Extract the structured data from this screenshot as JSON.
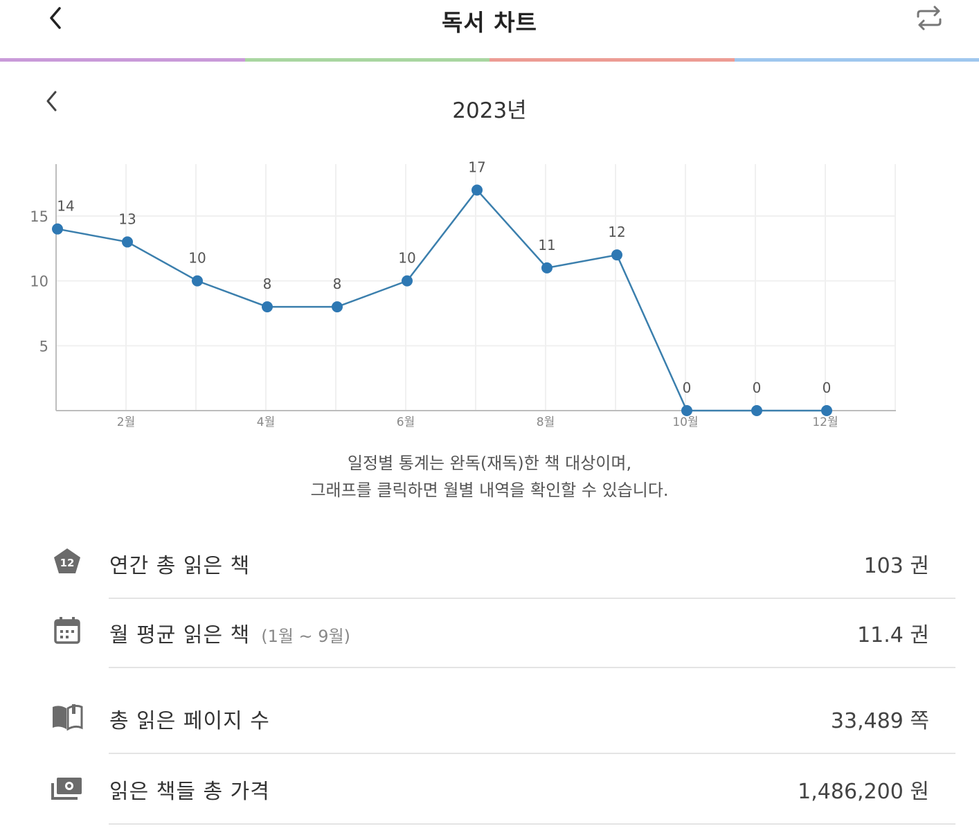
{
  "header": {
    "title": "독서 차트",
    "back_icon": "chevron-left-icon",
    "swap_icon": "swap-arrows-icon"
  },
  "tab_colors": [
    "#c99ad9",
    "#a9d6a1",
    "#ec9c94",
    "#9fc7ee"
  ],
  "year_nav": {
    "label": "2023년"
  },
  "chart_data": {
    "type": "line",
    "categories": [
      "1월",
      "2월",
      "3월",
      "4월",
      "5월",
      "6월",
      "7월",
      "8월",
      "9월",
      "10월",
      "11월",
      "12월"
    ],
    "x_tick_labels": [
      "",
      "2월",
      "",
      "4월",
      "",
      "6월",
      "",
      "8월",
      "",
      "10월",
      "",
      "12월"
    ],
    "values": [
      14,
      13,
      10,
      8,
      8,
      10,
      17,
      11,
      12,
      0,
      0,
      0
    ],
    "data_labels": [
      "14",
      "13",
      "10",
      "8",
      "8",
      "10",
      "17",
      "11",
      "12",
      "0",
      "0",
      "0"
    ],
    "y_ticks": [
      5,
      10,
      15
    ],
    "y_tick_labels": [
      "5",
      "10",
      "15"
    ],
    "ylim": [
      0,
      19
    ],
    "grid": true,
    "line_color": "#3b7fad",
    "point_color": "#2e78b3"
  },
  "note": {
    "line1": "일정별 통계는 완독(재독)한 책 대상이며,",
    "line2": "그래프를 클릭하면 월별 내역을 확인할 수 있습니다."
  },
  "stats": {
    "yearly_total": {
      "icon": "badge-12-icon",
      "icon_text": "12",
      "label": "연간 총 읽은 책",
      "value": "103 권"
    },
    "monthly_avg": {
      "icon": "calendar-icon",
      "label": "월 평균 읽은 책",
      "sub": "(1월 ~ 9월)",
      "value": "11.4 권"
    },
    "total_pages": {
      "icon": "open-book-icon",
      "label": "총 읽은 페이지 수",
      "value": "33,489 쪽"
    },
    "total_price": {
      "icon": "money-icon",
      "label": "읽은 책들 총 가격",
      "value": "1,486,200 원"
    }
  }
}
